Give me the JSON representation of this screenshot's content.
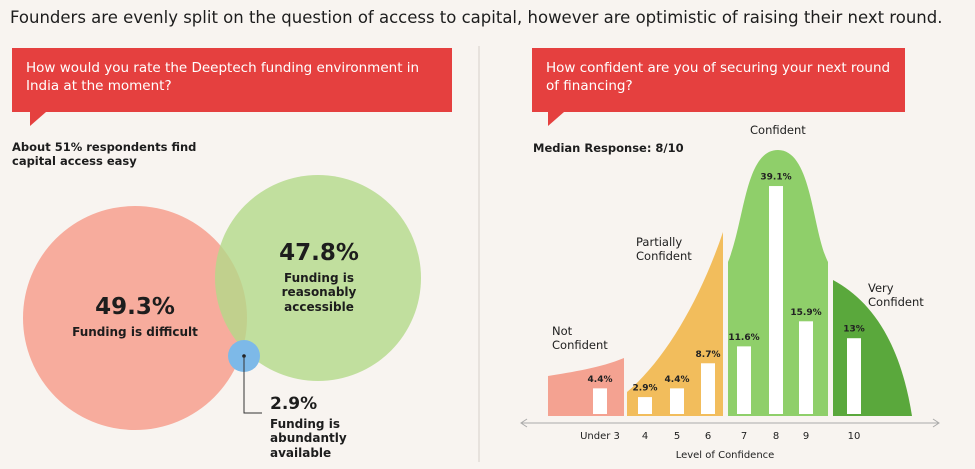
{
  "title": "Founders are evenly split on the question of access to capital, however are optimistic of raising their next round.",
  "chart_data": [
    {
      "type": "venn",
      "question": "How would you rate the Deeptech funding environment in India at the moment?",
      "subtitle": "About 51% respondents find capital access easy",
      "categories": [
        "Funding is difficult",
        "Funding is reasonably accessible",
        "Funding is abundantly available"
      ],
      "values": [
        49.3,
        47.8,
        2.9
      ],
      "value_labels": [
        "49.3%",
        "47.8%",
        "2.9%"
      ],
      "colors": [
        "#f7a898",
        "#b3d98a",
        "#7db9e8"
      ]
    },
    {
      "type": "bar",
      "question": "How confident are you of securing your next round of financing?",
      "subtitle": "Median Response: 8/10",
      "xlabel": "Level of Confidence",
      "categories": [
        "Under 3",
        "4",
        "5",
        "6",
        "7",
        "8",
        "9",
        "10"
      ],
      "series": [
        {
          "name": "Not Confident",
          "color": "#f4a291",
          "values": [
            4.4,
            null,
            null,
            null,
            null,
            null,
            null,
            null
          ],
          "value_labels": [
            "4.4%",
            null,
            null,
            null,
            null,
            null,
            null,
            null
          ]
        },
        {
          "name": "Partially Confident",
          "color": "#f2bd5c",
          "values": [
            null,
            2.9,
            4.4,
            8.7,
            null,
            null,
            null,
            null
          ],
          "value_labels": [
            null,
            "2.9%",
            "4.4%",
            "8.7%",
            null,
            null,
            null,
            null
          ]
        },
        {
          "name": "Confident",
          "color": "#8fcf6a",
          "values": [
            null,
            null,
            null,
            null,
            11.6,
            39.1,
            15.9,
            null
          ],
          "value_labels": [
            null,
            null,
            null,
            null,
            "11.6%",
            "39.1%",
            "15.9%",
            null
          ]
        },
        {
          "name": "Very Confident",
          "color": "#5aa83c",
          "values": [
            null,
            null,
            null,
            null,
            null,
            null,
            null,
            13
          ],
          "value_labels": [
            null,
            null,
            null,
            null,
            null,
            null,
            null,
            "13%"
          ]
        }
      ]
    }
  ]
}
